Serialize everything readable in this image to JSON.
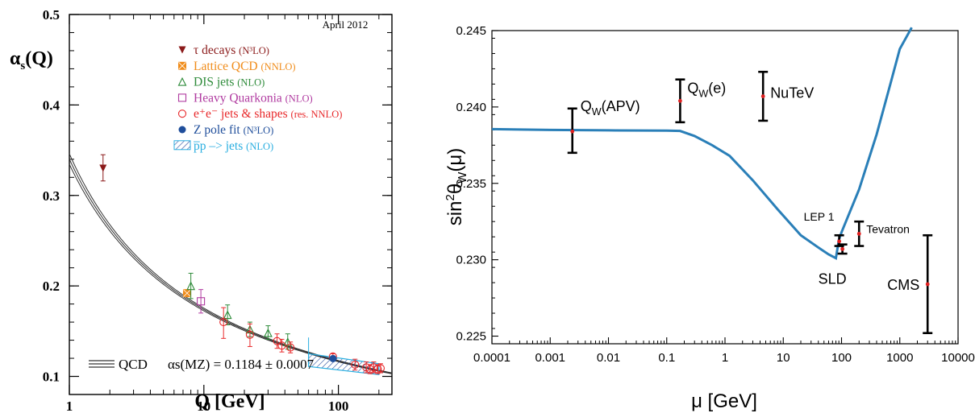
{
  "chart_data": [
    {
      "type": "scatter",
      "title": "",
      "annotation": "April 2012",
      "xlabel": "Q [GeV]",
      "ylabel": "αs(Q)",
      "xscale": "log",
      "xlim": [
        1,
        250
      ],
      "ylim": [
        0.08,
        0.5
      ],
      "xticks": [
        {
          "v": 1,
          "label": "1"
        },
        {
          "v": 10,
          "label": "10"
        },
        {
          "v": 100,
          "label": "100"
        }
      ],
      "yticks": [
        {
          "v": 0.1,
          "label": "0.1"
        },
        {
          "v": 0.2,
          "label": "0.2"
        },
        {
          "v": 0.3,
          "label": "0.3"
        },
        {
          "v": 0.4,
          "label": "0.4"
        },
        {
          "v": 0.5,
          "label": "0.5"
        }
      ],
      "series": [
        {
          "name": "τ decays",
          "suffix": "(N³LO)",
          "color": "#8b1a1a",
          "marker": "triangle-down",
          "points": [
            {
              "x": 1.78,
              "y": 0.33,
              "lo": 0.316,
              "hi": 0.345
            }
          ]
        },
        {
          "name": "Lattice QCD",
          "suffix": "(NNLO)",
          "color": "#f08c1a",
          "marker": "square-x",
          "points": [
            {
              "x": 7.5,
              "y": 0.192,
              "lo": 0.189,
              "hi": 0.195
            }
          ]
        },
        {
          "name": "DIS jets",
          "suffix": "(NLO)",
          "color": "#2e8b3a",
          "marker": "triangle-up",
          "points": [
            {
              "x": 8.0,
              "y": 0.2,
              "lo": 0.186,
              "hi": 0.214
            },
            {
              "x": 15,
              "y": 0.168,
              "lo": 0.157,
              "hi": 0.179
            },
            {
              "x": 22,
              "y": 0.152,
              "lo": 0.144,
              "hi": 0.16
            },
            {
              "x": 30,
              "y": 0.148,
              "lo": 0.141,
              "hi": 0.156
            },
            {
              "x": 42,
              "y": 0.138,
              "lo": 0.13,
              "hi": 0.147
            }
          ]
        },
        {
          "name": "Heavy Quarkonia",
          "suffix": "(NLO)",
          "color": "#b03aa0",
          "marker": "square-open",
          "points": [
            {
              "x": 9.5,
              "y": 0.183,
              "lo": 0.17,
              "hi": 0.196
            }
          ]
        },
        {
          "name": "e⁺e⁻ jets & shapes",
          "suffix": "(res. NNLO)",
          "color": "#e8282a",
          "marker": "circle-open",
          "points": [
            {
              "x": 14,
              "y": 0.16,
              "lo": 0.142,
              "hi": 0.176
            },
            {
              "x": 22,
              "y": 0.146,
              "lo": 0.133,
              "hi": 0.158
            },
            {
              "x": 35,
              "y": 0.139,
              "lo": 0.131,
              "hi": 0.147
            },
            {
              "x": 38,
              "y": 0.134,
              "lo": 0.127,
              "hi": 0.141
            },
            {
              "x": 44,
              "y": 0.132,
              "lo": 0.126,
              "hi": 0.138
            },
            {
              "x": 91,
              "y": 0.122,
              "lo": 0.119,
              "hi": 0.125
            },
            {
              "x": 133,
              "y": 0.113,
              "lo": 0.107,
              "hi": 0.119
            },
            {
              "x": 161,
              "y": 0.11,
              "lo": 0.104,
              "hi": 0.116
            },
            {
              "x": 172,
              "y": 0.108,
              "lo": 0.103,
              "hi": 0.113
            },
            {
              "x": 183,
              "y": 0.11,
              "lo": 0.104,
              "hi": 0.116
            },
            {
              "x": 196,
              "y": 0.108,
              "lo": 0.103,
              "hi": 0.113
            },
            {
              "x": 206,
              "y": 0.109,
              "lo": 0.104,
              "hi": 0.114
            }
          ]
        },
        {
          "name": "Z pole fit",
          "suffix": "(N³LO)",
          "color": "#1f4e9b",
          "marker": "circle-filled",
          "points": [
            {
              "x": 91.2,
              "y": 0.1197,
              "lo": 0.1169,
              "hi": 0.1225
            }
          ]
        },
        {
          "name": "p̅p –> jets",
          "suffix": "(NLO)",
          "color": "#29aee0",
          "marker": "hatched-box",
          "points": []
        }
      ],
      "ppbar_region": {
        "x_from": 60,
        "x_to": 200,
        "y_low_start": 0.111,
        "y_low_end": 0.102,
        "y_high_start": 0.125,
        "y_high_end": 0.114
      },
      "ppbar_point": {
        "x": 60,
        "y": 0.127,
        "lo": 0.111,
        "hi": 0.143
      },
      "qcd_curve": {
        "alpha_mz": 0.1184,
        "err": 0.0007,
        "mz": 91.19
      },
      "legend_bottom": {
        "label": "QCD",
        "formula": "αs(MZ) = 0.1184 ± 0.0007"
      },
      "legend_position": "top-right"
    },
    {
      "type": "line",
      "title": "",
      "xlabel": "μ [GeV]",
      "ylabel": "sin²θW(μ)",
      "xscale": "log",
      "xlim": [
        0.0001,
        10000
      ],
      "ylim": [
        0.2245,
        0.245
      ],
      "grid": false,
      "xticks": [
        {
          "v": 0.0001,
          "label": "0.0001"
        },
        {
          "v": 0.001,
          "label": "0.001"
        },
        {
          "v": 0.01,
          "label": "0.01"
        },
        {
          "v": 0.1,
          "label": "0.1"
        },
        {
          "v": 1,
          "label": "1"
        },
        {
          "v": 10,
          "label": "10"
        },
        {
          "v": 100,
          "label": "100"
        },
        {
          "v": 1000,
          "label": "1000"
        },
        {
          "v": 10000,
          "label": "10000"
        }
      ],
      "yticks": [
        {
          "v": 0.225,
          "label": "0.225"
        },
        {
          "v": 0.23,
          "label": "0.230"
        },
        {
          "v": 0.235,
          "label": "0.235"
        },
        {
          "v": 0.24,
          "label": "0.240"
        },
        {
          "v": 0.245,
          "label": "0.245"
        }
      ],
      "curve": {
        "name": "",
        "color": "#2a7fb8",
        "x": [
          0.0001,
          0.001,
          0.01,
          0.1,
          0.17,
          0.3,
          0.6,
          1.2,
          3,
          8,
          20,
          40,
          60,
          80,
          90,
          100,
          200,
          400,
          700,
          1000,
          1600
        ],
        "y": [
          0.23855,
          0.2385,
          0.23847,
          0.23845,
          0.23843,
          0.2381,
          0.2375,
          0.2368,
          0.2352,
          0.2333,
          0.2316,
          0.2308,
          0.23035,
          0.2301,
          0.2313,
          0.2318,
          0.2346,
          0.2382,
          0.2416,
          0.2438,
          0.2452
        ]
      },
      "measurements": [
        {
          "label": "QW(APV)",
          "x": 0.0024,
          "y": 0.2384,
          "lo": 0.237,
          "hi": 0.2399
        },
        {
          "label": "QW(e)",
          "x": 0.17,
          "y": 0.2404,
          "lo": 0.239,
          "hi": 0.2418
        },
        {
          "label": "NuTeV",
          "x": 4.5,
          "y": 0.2407,
          "lo": 0.2391,
          "hi": 0.2423
        },
        {
          "label": "LEP 1",
          "x": 91.2,
          "y": 0.2312,
          "lo": 0.2309,
          "hi": 0.2316
        },
        {
          "label": "SLD",
          "x": 91.2,
          "y": 0.2307,
          "lo": 0.2304,
          "hi": 0.231
        },
        {
          "label": "Tevatron",
          "x": 200,
          "y": 0.2317,
          "lo": 0.2309,
          "hi": 0.2325
        },
        {
          "label": "CMS",
          "x": 3000,
          "y": 0.2284,
          "lo": 0.2252,
          "hi": 0.2316
        }
      ]
    }
  ]
}
